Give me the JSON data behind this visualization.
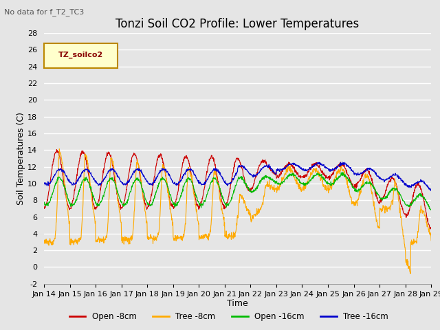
{
  "title": "Tonzi Soil CO2 Profile: Lower Temperatures",
  "subtitle": "No data for f_T2_TC3",
  "xlabel": "Time",
  "ylabel": "Soil Temperatures (C)",
  "ylim": [
    -2,
    28
  ],
  "yticks": [
    -2,
    0,
    2,
    4,
    6,
    8,
    10,
    12,
    14,
    16,
    18,
    20,
    22,
    24,
    26,
    28
  ],
  "xtick_labels": [
    "Jan 14",
    "Jan 15",
    "Jan 16",
    "Jan 17",
    "Jan 18",
    "Jan 19",
    "Jan 20",
    "Jan 21",
    "Jan 22",
    "Jan 23",
    "Jan 24",
    "Jan 25",
    "Jan 26",
    "Jan 27",
    "Jan 28",
    "Jan 29"
  ],
  "legend_labels": [
    "Open -8cm",
    "Tree -8cm",
    "Open -16cm",
    "Tree -16cm"
  ],
  "line_colors": [
    "#cc0000",
    "#ffaa00",
    "#00bb00",
    "#0000cc"
  ],
  "bg_color": "#e5e5e5",
  "title_fontsize": 12,
  "label_fontsize": 9,
  "tick_fontsize": 8,
  "n_days": 15,
  "pts_per_day": 96
}
